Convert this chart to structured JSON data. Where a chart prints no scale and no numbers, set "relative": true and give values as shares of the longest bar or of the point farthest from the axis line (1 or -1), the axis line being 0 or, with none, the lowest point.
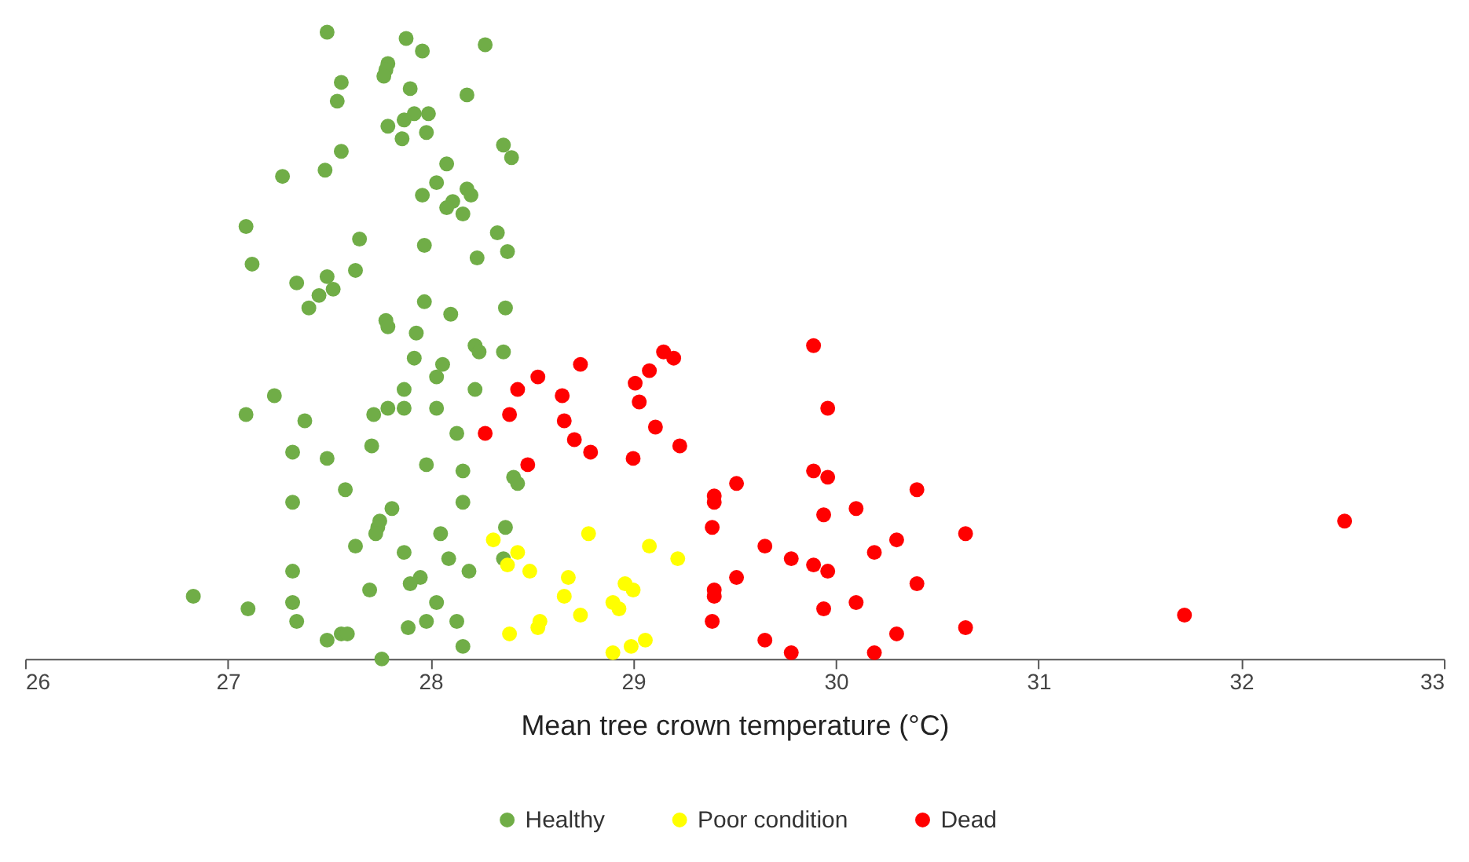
{
  "chart_data": {
    "type": "scatter",
    "xlabel": "Mean tree crown temperature (°C)",
    "relative": true,
    "xlim": [
      26,
      33
    ],
    "xticks": [
      26,
      27,
      28,
      29,
      30,
      31,
      32,
      33
    ],
    "grid": false,
    "legend": "bottom",
    "marker": "circle",
    "series": [
      {
        "name": "Healthy",
        "color": "#70ad47",
        "x": [
          27.49,
          27.88,
          27.96,
          28.27,
          27.56,
          27.79,
          27.78,
          27.77,
          27.9,
          27.54,
          28.18,
          27.92,
          27.99,
          27.87,
          27.79,
          27.98,
          27.86,
          27.56,
          27.48,
          27.27,
          28.36,
          28.4,
          28.08,
          28.03,
          28.18,
          28.2,
          28.11,
          27.96,
          28.16,
          28.08,
          27.09,
          27.65,
          28.33,
          28.38,
          27.12,
          27.97,
          28.23,
          27.34,
          27.63,
          27.49,
          27.52,
          27.45,
          27.4,
          27.97,
          27.78,
          27.79,
          28.1,
          28.37,
          27.93,
          28.22,
          28.24,
          27.92,
          28.36,
          28.06,
          28.03,
          27.23,
          27.87,
          27.87,
          27.38,
          27.72,
          27.79,
          27.09,
          28.03,
          28.22,
          28.13,
          27.32,
          27.71,
          27.49,
          27.98,
          28.16,
          28.41,
          28.43,
          27.32,
          27.58,
          28.16,
          27.81,
          27.75,
          27.74,
          27.73,
          28.37,
          28.05,
          27.63,
          27.87,
          28.36,
          27.32,
          28.09,
          28.19,
          27.95,
          27.9,
          26.83,
          27.1,
          27.7,
          27.32,
          27.34,
          27.56,
          27.89,
          27.98,
          27.49,
          27.59,
          27.76,
          28.16,
          28.13,
          28.03
        ],
        "values": [
          1.0,
          0.99,
          0.97,
          0.98,
          0.92,
          0.95,
          0.94,
          0.93,
          0.91,
          0.89,
          0.9,
          0.87,
          0.87,
          0.86,
          0.85,
          0.84,
          0.83,
          0.81,
          0.78,
          0.77,
          0.82,
          0.8,
          0.79,
          0.76,
          0.75,
          0.74,
          0.73,
          0.74,
          0.71,
          0.72,
          0.69,
          0.67,
          0.68,
          0.65,
          0.63,
          0.66,
          0.64,
          0.6,
          0.62,
          0.61,
          0.59,
          0.58,
          0.56,
          0.57,
          0.54,
          0.53,
          0.55,
          0.56,
          0.52,
          0.5,
          0.49,
          0.48,
          0.49,
          0.47,
          0.45,
          0.42,
          0.43,
          0.4,
          0.38,
          0.39,
          0.4,
          0.39,
          0.4,
          0.43,
          0.36,
          0.33,
          0.34,
          0.32,
          0.31,
          0.3,
          0.29,
          0.28,
          0.25,
          0.27,
          0.25,
          0.24,
          0.22,
          0.21,
          0.2,
          0.21,
          0.2,
          0.18,
          0.17,
          0.16,
          0.14,
          0.16,
          0.14,
          0.13,
          0.12,
          0.1,
          0.08,
          0.11,
          0.09,
          0.06,
          0.04,
          0.05,
          0.06,
          0.03,
          0.04,
          0.0,
          0.02,
          0.06,
          0.09
        ]
      },
      {
        "name": "Poor condition",
        "color": "#ffff00",
        "x": [
          28.31,
          28.43,
          28.38,
          28.49,
          28.78,
          28.68,
          28.66,
          28.74,
          28.54,
          28.53,
          28.39,
          28.96,
          29.0,
          28.9,
          28.93,
          29.08,
          29.22,
          29.06,
          28.99,
          28.9
        ],
        "values": [
          0.19,
          0.17,
          0.15,
          0.14,
          0.2,
          0.13,
          0.1,
          0.07,
          0.06,
          0.05,
          0.04,
          0.12,
          0.11,
          0.09,
          0.08,
          0.18,
          0.16,
          0.03,
          0.02,
          0.01
        ]
      },
      {
        "name": "Dead",
        "color": "#ff0000",
        "x": [
          28.27,
          28.39,
          28.43,
          28.53,
          28.74,
          28.65,
          28.66,
          28.71,
          28.79,
          28.48,
          29.01,
          29.08,
          29.15,
          29.2,
          29.03,
          29.11,
          29.23,
          29.0,
          29.89,
          29.96,
          29.89,
          29.96,
          29.94,
          29.51,
          29.4,
          29.4,
          29.39,
          30.1,
          30.4,
          29.65,
          29.78,
          29.89,
          29.96,
          30.19,
          30.3,
          30.64,
          29.4,
          29.4,
          29.51,
          29.39,
          29.94,
          30.1,
          30.4,
          30.64,
          29.65,
          29.78,
          30.19,
          30.3,
          31.72,
          32.51
        ],
        "values": [
          0.36,
          0.39,
          0.43,
          0.45,
          0.47,
          0.42,
          0.38,
          0.35,
          0.33,
          0.31,
          0.44,
          0.46,
          0.49,
          0.48,
          0.41,
          0.37,
          0.34,
          0.32,
          0.5,
          0.4,
          0.3,
          0.29,
          0.23,
          0.28,
          0.26,
          0.25,
          0.21,
          0.24,
          0.27,
          0.18,
          0.16,
          0.15,
          0.14,
          0.17,
          0.19,
          0.2,
          0.11,
          0.1,
          0.13,
          0.06,
          0.08,
          0.09,
          0.12,
          0.05,
          0.03,
          0.01,
          0.01,
          0.04,
          0.07,
          0.22
        ]
      }
    ]
  }
}
